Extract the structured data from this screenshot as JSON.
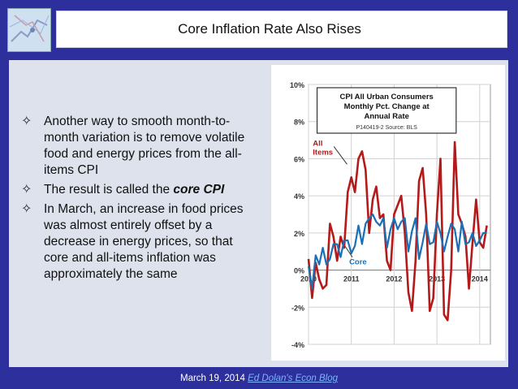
{
  "slide": {
    "title": "Core Inflation Rate Also Rises",
    "bullets": [
      {
        "text": "Another way to smooth month-to-month variation is to remove volatile food and energy prices from the all-items CPI"
      },
      {
        "text_before": "The result is called the ",
        "emphasis": "core CPI"
      },
      {
        "text": "In March, an increase in food prices was almost entirely offset by a decrease in energy prices, so that core and all-items inflation was approximately the same"
      }
    ],
    "bullet_icon": "four-point-star-icon",
    "thumbnail_icon": "map-thumbnail-icon",
    "footer": {
      "date": "March 19, 2014",
      "link_text": "Ed Dolan's Econ Blog"
    },
    "colors": {
      "background": "#2c2f9c",
      "panel": "#dde2ec",
      "all_items_line": "#b51a1a",
      "core_line": "#1a6fb5",
      "link": "#7fb2ff"
    }
  },
  "chart_data": {
    "type": "line",
    "title_lines": [
      "CPI All Urban Consumers",
      "Monthly Pct. Change at",
      "Annual Rate"
    ],
    "source": "P140419-2 Source: BLS",
    "ylim": [
      -4,
      10
    ],
    "y_ticks": [
      -4,
      -2,
      0,
      2,
      4,
      6,
      8,
      10
    ],
    "y_tick_labels": [
      "-4%",
      "-2%",
      "0%",
      "2%",
      "4%",
      "6%",
      "8%",
      "10%"
    ],
    "xlim": [
      2010.0,
      2014.25
    ],
    "x_ticks": [
      2010,
      2011,
      2012,
      2013,
      2014
    ],
    "x_tick_labels": [
      "2010",
      "2011",
      "2012",
      "2013",
      "2014"
    ],
    "grid": true,
    "series": [
      {
        "name": "All Items",
        "color": "#b51a1a",
        "x": [
          2010.0,
          2010.083,
          2010.167,
          2010.25,
          2010.333,
          2010.417,
          2010.5,
          2010.583,
          2010.667,
          2010.75,
          2010.833,
          2010.917,
          2011.0,
          2011.083,
          2011.167,
          2011.25,
          2011.333,
          2011.417,
          2011.5,
          2011.583,
          2011.667,
          2011.75,
          2011.833,
          2011.917,
          2012.0,
          2012.083,
          2012.167,
          2012.25,
          2012.333,
          2012.417,
          2012.5,
          2012.583,
          2012.667,
          2012.75,
          2012.833,
          2012.917,
          2013.0,
          2013.083,
          2013.167,
          2013.25,
          2013.333,
          2013.417,
          2013.5,
          2013.583,
          2013.667,
          2013.75,
          2013.833,
          2013.917,
          2014.0,
          2014.083,
          2014.167
        ],
        "values": [
          0.6,
          -1.5,
          0.4,
          -0.5,
          -1.0,
          -0.8,
          2.5,
          1.8,
          0.5,
          1.8,
          1.2,
          4.2,
          5.0,
          4.2,
          6.0,
          6.4,
          5.4,
          2.0,
          3.8,
          4.5,
          2.8,
          3.0,
          0.5,
          0.0,
          3.0,
          3.5,
          4.0,
          2.0,
          -1.2,
          -2.2,
          0.5,
          4.8,
          5.5,
          3.0,
          -2.2,
          -1.5,
          3.0,
          6.0,
          -2.4,
          -2.7,
          0.0,
          6.9,
          3.0,
          2.5,
          1.8,
          -1.0,
          1.5,
          3.8,
          1.5,
          1.2,
          2.4
        ],
        "label": "All\nItems"
      },
      {
        "name": "Core",
        "color": "#1a6fb5",
        "x": [
          2010.0,
          2010.083,
          2010.167,
          2010.25,
          2010.333,
          2010.417,
          2010.5,
          2010.583,
          2010.667,
          2010.75,
          2010.833,
          2010.917,
          2011.0,
          2011.083,
          2011.167,
          2011.25,
          2011.333,
          2011.417,
          2011.5,
          2011.583,
          2011.667,
          2011.75,
          2011.833,
          2011.917,
          2012.0,
          2012.083,
          2012.167,
          2012.25,
          2012.333,
          2012.417,
          2012.5,
          2012.583,
          2012.667,
          2012.75,
          2012.833,
          2012.917,
          2013.0,
          2013.083,
          2013.167,
          2013.25,
          2013.333,
          2013.417,
          2013.5,
          2013.583,
          2013.667,
          2013.75,
          2013.833,
          2013.917,
          2014.0,
          2014.083,
          2014.167
        ],
        "values": [
          0.2,
          -1.0,
          0.8,
          0.3,
          1.2,
          0.3,
          0.6,
          1.4,
          1.4,
          0.7,
          1.6,
          1.6,
          0.9,
          1.3,
          2.4,
          1.4,
          2.5,
          2.8,
          3.0,
          2.6,
          2.4,
          2.8,
          1.2,
          2.2,
          2.8,
          2.2,
          2.6,
          2.8,
          1.0,
          2.1,
          2.8,
          0.6,
          1.5,
          2.5,
          1.4,
          1.5,
          2.6,
          2.0,
          1.0,
          1.8,
          2.5,
          2.2,
          1.0,
          2.6,
          1.4,
          1.5,
          2.0,
          1.3,
          1.6,
          2.0,
          2.0
        ],
        "label": "Core"
      }
    ]
  }
}
